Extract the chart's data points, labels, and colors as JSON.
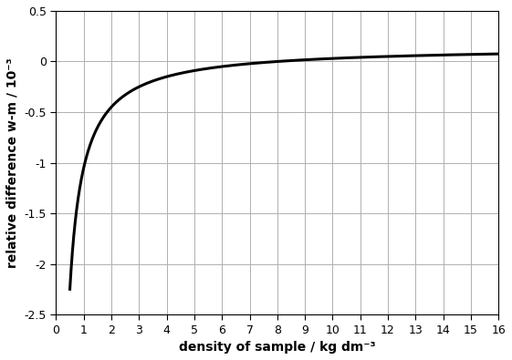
{
  "rho_a": 0.0012,
  "rho_r": 8.0,
  "xlim": [
    0,
    16
  ],
  "ylim": [
    -2.5,
    0.5
  ],
  "xticks": [
    0,
    1,
    2,
    3,
    4,
    5,
    6,
    7,
    8,
    9,
    10,
    11,
    12,
    13,
    14,
    15,
    16
  ],
  "yticks": [
    -2.5,
    -2.0,
    -1.5,
    -1.0,
    -0.5,
    0.0,
    0.5
  ],
  "xlabel": "density of sample / kg dm⁻³",
  "ylabel": "relative difference w-m / 10⁻³",
  "line_color": "#000000",
  "line_width": 2.2,
  "grid_color": "#b0b0b0",
  "background_color": "#ffffff",
  "x_start": 0.5,
  "x_end": 16.0,
  "xlabel_fontsize": 10,
  "ylabel_fontsize": 10,
  "tick_labelsize": 9
}
